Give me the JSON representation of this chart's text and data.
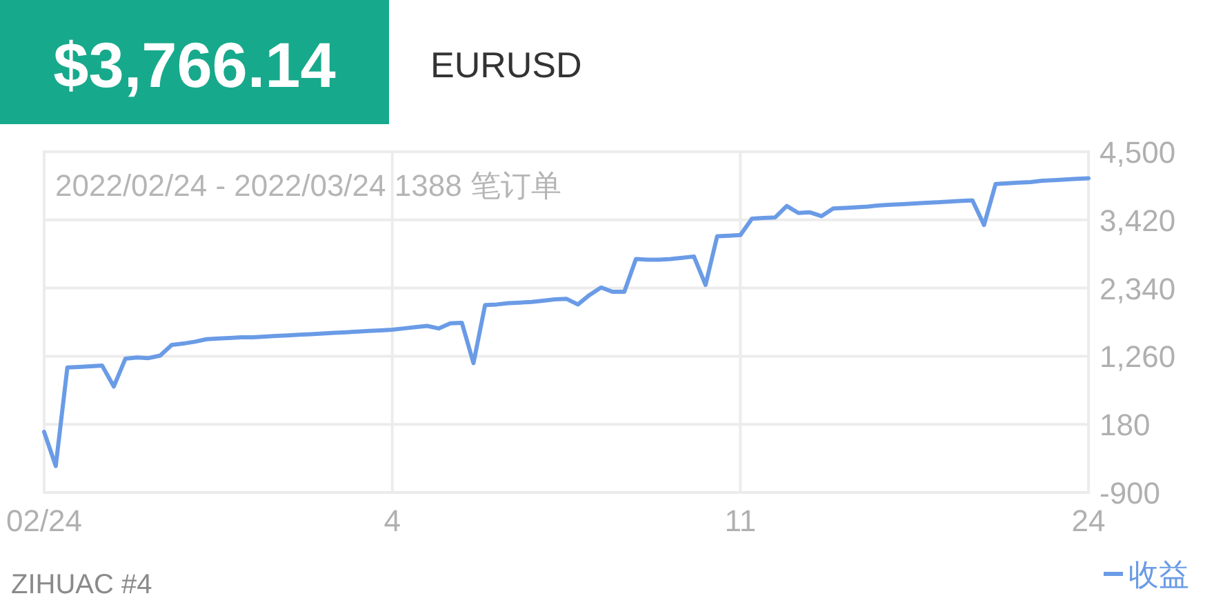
{
  "chart_data": {
    "type": "line",
    "title": "$3,766.14",
    "subtitle": "EURUSD",
    "annotations": [
      "2022/02/24 - 2022/03/24 1388 笔订单",
      "ZIHUAC #4"
    ],
    "categories": [
      "02/24",
      null,
      null,
      null,
      null,
      null,
      null,
      null,
      null,
      null,
      null,
      null,
      null,
      null,
      null,
      null,
      null,
      null,
      null,
      null,
      null,
      null,
      null,
      null,
      null,
      null,
      null,
      null,
      null,
      null,
      "4",
      null,
      null,
      null,
      null,
      null,
      null,
      null,
      null,
      null,
      null,
      null,
      null,
      null,
      null,
      null,
      null,
      null,
      null,
      null,
      null,
      null,
      null,
      null,
      null,
      null,
      null,
      null,
      null,
      null,
      "11",
      null,
      null,
      null,
      null,
      null,
      null,
      null,
      null,
      null,
      null,
      null,
      null,
      null,
      null,
      null,
      null,
      null,
      null,
      null,
      null,
      null,
      null,
      null,
      null,
      null,
      null,
      null,
      null,
      null,
      "24"
    ],
    "ylim": [
      -900,
      4500
    ],
    "yticks": [
      {
        "value": -900,
        "label": "-900"
      },
      {
        "value": 180,
        "label": "180"
      },
      {
        "value": 1260,
        "label": "1,260"
      },
      {
        "value": 2340,
        "label": "2,340"
      },
      {
        "value": 3420,
        "label": "3,420"
      },
      {
        "value": 4500,
        "label": "4,500"
      }
    ],
    "grid": true,
    "legend": "bottom right",
    "line_style": "solid",
    "series": [
      {
        "name": "收益",
        "color": "#6a9be6",
        "values": [
          60,
          -480,
          1080,
          1090,
          1100,
          1110,
          780,
          1220,
          1240,
          1230,
          1270,
          1440,
          1460,
          1490,
          1530,
          1540,
          1550,
          1560,
          1560,
          1570,
          1580,
          1590,
          1600,
          1610,
          1620,
          1630,
          1640,
          1650,
          1660,
          1670,
          1680,
          1700,
          1720,
          1740,
          1700,
          1780,
          1790,
          1150,
          2070,
          2080,
          2100,
          2110,
          2120,
          2140,
          2160,
          2170,
          2080,
          2230,
          2350,
          2280,
          2280,
          2800,
          2790,
          2790,
          2800,
          2820,
          2840,
          2390,
          3160,
          3170,
          3180,
          3440,
          3450,
          3460,
          3640,
          3530,
          3540,
          3480,
          3600,
          3610,
          3620,
          3630,
          3650,
          3660,
          3670,
          3680,
          3690,
          3700,
          3710,
          3720,
          3730,
          3340,
          3990,
          4000,
          4010,
          4020,
          4040,
          4050,
          4060,
          4070,
          4080
        ]
      }
    ]
  }
}
